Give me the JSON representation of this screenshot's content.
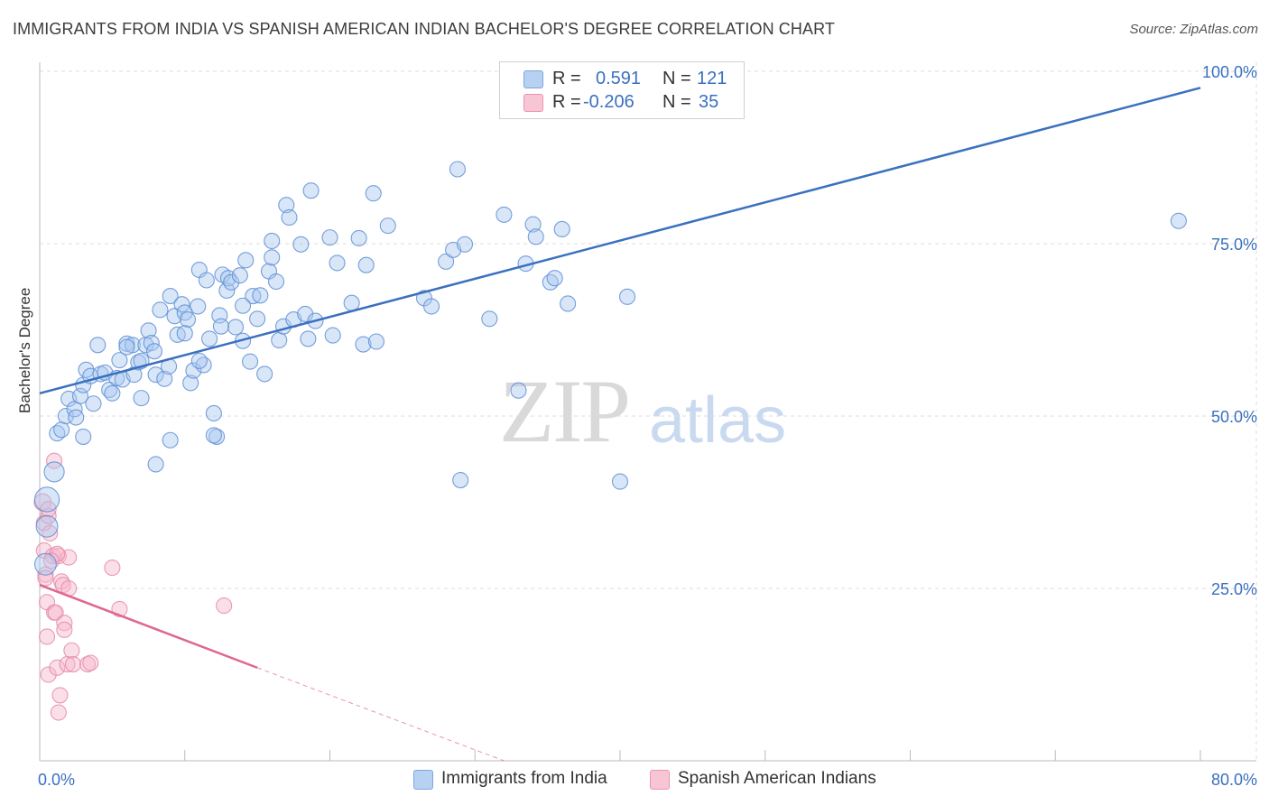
{
  "title": "IMMIGRANTS FROM INDIA VS SPANISH AMERICAN INDIAN BACHELOR'S DEGREE CORRELATION CHART",
  "source": "Source: ZipAtlas.com",
  "watermark": {
    "zip": "ZIP",
    "atlas": "atlas"
  },
  "legend": {
    "rows": [
      {
        "r_label": "R =",
        "r_value": "0.591",
        "n_label": "N =",
        "n_value": "121",
        "color": "#a9c8ef"
      },
      {
        "r_label": "R =",
        "r_value": "-0.206",
        "n_label": "N =",
        "n_value": "35",
        "color": "#f6b8cc"
      }
    ]
  },
  "bottom_legend": {
    "series1": "Immigrants from India",
    "series2": "Spanish American Indians"
  },
  "colors": {
    "blue": "#3a70c0",
    "blue_fill": "#a9c8ef",
    "pink": "#e06692",
    "pink_fill": "#f6b8cc",
    "grid": "#dddddd"
  },
  "chart_data": {
    "type": "scatter",
    "title": "IMMIGRANTS FROM INDIA VS SPANISH AMERICAN INDIAN BACHELOR'S DEGREE CORRELATION CHART",
    "xlabel": "",
    "ylabel": "Bachelor's Degree",
    "xlim": [
      0,
      80
    ],
    "ylim": [
      0,
      100
    ],
    "x_tick_labels": [
      "0.0%",
      "80.0%"
    ],
    "y_tick_labels": [
      "25.0%",
      "50.0%",
      "75.0%",
      "100.0%"
    ],
    "y_ticks": [
      25,
      50,
      75,
      100
    ],
    "series": [
      {
        "name": "Immigrants from India",
        "R": 0.591,
        "N": 121,
        "trend": {
          "x": [
            0,
            80
          ],
          "y": [
            53.3,
            97.6
          ],
          "dashed_from": null
        },
        "points": [
          [
            0.5,
            37.9,
            1.6
          ],
          [
            0.5,
            34.0,
            1.4
          ],
          [
            0.4,
            28.5,
            1.4
          ],
          [
            1.0,
            41.9,
            1.3
          ],
          [
            1.2,
            47.5,
            1.0
          ],
          [
            1.5,
            48.0,
            1.0
          ],
          [
            1.8,
            50.0,
            1.0
          ],
          [
            2.0,
            52.5,
            1.0
          ],
          [
            2.4,
            51.0,
            1.0
          ],
          [
            2.5,
            49.8,
            1.0
          ],
          [
            2.8,
            52.9,
            1.0
          ],
          [
            3.0,
            54.5,
            1.0
          ],
          [
            3.2,
            56.7,
            1.0
          ],
          [
            3.5,
            55.8,
            1.0
          ],
          [
            3.7,
            51.8,
            1.0
          ],
          [
            4.0,
            60.3,
            1.0
          ],
          [
            4.2,
            56.1,
            1.0
          ],
          [
            4.5,
            56.3,
            1.0
          ],
          [
            4.8,
            53.8,
            1.0
          ],
          [
            5.0,
            53.3,
            1.0
          ],
          [
            5.3,
            55.5,
            1.0
          ],
          [
            5.5,
            58.1,
            1.0
          ],
          [
            5.7,
            55.3,
            1.0
          ],
          [
            6.0,
            60.5,
            1.0
          ],
          [
            6.4,
            60.3,
            1.0
          ],
          [
            6.5,
            56.0,
            1.0
          ],
          [
            6.8,
            57.8,
            1.0
          ],
          [
            7.0,
            52.6,
            1.0
          ],
          [
            7.3,
            60.3,
            1.0
          ],
          [
            7.5,
            62.4,
            1.0
          ],
          [
            7.7,
            60.6,
            1.0
          ],
          [
            7.9,
            59.4,
            1.0
          ],
          [
            8.0,
            56.0,
            1.0
          ],
          [
            8.3,
            65.4,
            1.0
          ],
          [
            8.6,
            55.4,
            1.0
          ],
          [
            8.9,
            57.2,
            1.0
          ],
          [
            9.0,
            67.4,
            1.0
          ],
          [
            9.3,
            64.5,
            1.0
          ],
          [
            9.5,
            61.8,
            1.0
          ],
          [
            9.8,
            66.2,
            1.0
          ],
          [
            10.0,
            65.0,
            1.0
          ],
          [
            10.2,
            64.0,
            1.0
          ],
          [
            10.4,
            54.8,
            1.0
          ],
          [
            10.6,
            56.6,
            1.0
          ],
          [
            10.9,
            65.9,
            1.0
          ],
          [
            11.0,
            71.2,
            1.0
          ],
          [
            11.3,
            57.4,
            1.0
          ],
          [
            11.5,
            69.7,
            1.0
          ],
          [
            11.7,
            61.2,
            1.0
          ],
          [
            12.0,
            50.4,
            1.0
          ],
          [
            12.2,
            47.0,
            1.0
          ],
          [
            12.4,
            64.6,
            1.0
          ],
          [
            12.6,
            70.5,
            1.0
          ],
          [
            12.9,
            68.2,
            1.0
          ],
          [
            13.0,
            70.0,
            1.0
          ],
          [
            13.2,
            69.4,
            1.0
          ],
          [
            13.5,
            62.9,
            1.0
          ],
          [
            13.8,
            70.4,
            1.0
          ],
          [
            14.0,
            60.9,
            1.0
          ],
          [
            14.2,
            72.6,
            1.0
          ],
          [
            14.5,
            57.9,
            1.0
          ],
          [
            14.7,
            67.4,
            1.0
          ],
          [
            15.0,
            64.1,
            1.0
          ],
          [
            15.2,
            67.5,
            1.0
          ],
          [
            15.5,
            56.1,
            1.0
          ],
          [
            15.8,
            71.0,
            1.0
          ],
          [
            16.3,
            69.5,
            1.0
          ],
          [
            16.0,
            75.4,
            1.0
          ],
          [
            16.5,
            61.0,
            1.0
          ],
          [
            16.8,
            63.0,
            1.0
          ],
          [
            17.0,
            80.6,
            1.0
          ],
          [
            17.2,
            78.8,
            1.0
          ],
          [
            17.5,
            64.0,
            1.0
          ],
          [
            18.0,
            74.9,
            1.0
          ],
          [
            18.3,
            64.8,
            1.0
          ],
          [
            18.5,
            61.2,
            1.0
          ],
          [
            18.7,
            82.7,
            1.0
          ],
          [
            19.0,
            63.8,
            1.0
          ],
          [
            20.0,
            75.9,
            1.0
          ],
          [
            20.2,
            61.7,
            1.0
          ],
          [
            20.5,
            72.2,
            1.0
          ],
          [
            21.5,
            66.4,
            1.0
          ],
          [
            22.0,
            75.8,
            1.0
          ],
          [
            22.3,
            60.4,
            1.0
          ],
          [
            22.5,
            71.9,
            1.0
          ],
          [
            23.0,
            82.3,
            1.0
          ],
          [
            23.2,
            60.8,
            1.0
          ],
          [
            24.0,
            77.6,
            1.0
          ],
          [
            26.5,
            67.1,
            1.0
          ],
          [
            27.0,
            65.9,
            1.0
          ],
          [
            28.0,
            72.4,
            1.0
          ],
          [
            28.5,
            74.1,
            1.0
          ],
          [
            28.8,
            85.8,
            1.0
          ],
          [
            29.3,
            74.9,
            1.0
          ],
          [
            29.0,
            40.7,
            1.0
          ],
          [
            31.0,
            64.1,
            1.0
          ],
          [
            32.0,
            79.2,
            1.0
          ],
          [
            33.0,
            53.7,
            1.0
          ],
          [
            33.5,
            72.1,
            1.0
          ],
          [
            34.0,
            77.8,
            1.0
          ],
          [
            34.2,
            76.0,
            1.0
          ],
          [
            35.2,
            69.4,
            1.0
          ],
          [
            35.5,
            70.0,
            1.0
          ],
          [
            36.0,
            77.1,
            1.0
          ],
          [
            36.4,
            66.3,
            1.0
          ],
          [
            40.0,
            40.5,
            1.0
          ],
          [
            40.5,
            67.3,
            1.0
          ],
          [
            78.5,
            78.3,
            1.0
          ],
          [
            3.0,
            47.0,
            1.0
          ],
          [
            9.0,
            46.5,
            1.0
          ],
          [
            8.0,
            43.0,
            1.0
          ],
          [
            12.0,
            47.2,
            1.0
          ],
          [
            6.0,
            60.0,
            1.0
          ],
          [
            10.0,
            62.0,
            1.0
          ],
          [
            7.0,
            58.0,
            1.0
          ],
          [
            11.0,
            58.0,
            1.0
          ],
          [
            12.5,
            63.0,
            1.0
          ],
          [
            14.0,
            66.0,
            1.0
          ],
          [
            16.0,
            73.0,
            1.0
          ]
        ]
      },
      {
        "name": "Spanish American Indians",
        "R": -0.206,
        "N": 35,
        "trend": {
          "x": [
            0,
            15
          ],
          "y": [
            25.5,
            13.5
          ],
          "dashed_to": [
            32,
            0
          ]
        },
        "points": [
          [
            0.2,
            37.5,
            1.1
          ],
          [
            0.3,
            34.5,
            1.0
          ],
          [
            0.3,
            30.5,
            1.0
          ],
          [
            0.4,
            27.0,
            1.0
          ],
          [
            0.5,
            23.0,
            1.0
          ],
          [
            0.5,
            18.0,
            1.0
          ],
          [
            0.6,
            12.5,
            1.0
          ],
          [
            0.6,
            35.5,
            1.0
          ],
          [
            0.7,
            33.0,
            1.0
          ],
          [
            0.9,
            29.7,
            1.0
          ],
          [
            1.0,
            21.5,
            1.0
          ],
          [
            1.0,
            43.5,
            1.0
          ],
          [
            1.1,
            21.5,
            1.0
          ],
          [
            1.2,
            13.5,
            1.0
          ],
          [
            1.3,
            29.7,
            1.0
          ],
          [
            1.3,
            7.0,
            1.0
          ],
          [
            1.4,
            9.5,
            1.0
          ],
          [
            1.5,
            26.0,
            1.0
          ],
          [
            1.6,
            25.5,
            1.0
          ],
          [
            1.7,
            20.0,
            1.0
          ],
          [
            1.7,
            19.0,
            1.0
          ],
          [
            1.9,
            14.0,
            1.0
          ],
          [
            2.0,
            29.5,
            1.0
          ],
          [
            2.0,
            25.0,
            1.0
          ],
          [
            2.2,
            16.0,
            1.0
          ],
          [
            2.3,
            14.0,
            1.0
          ],
          [
            3.3,
            14.0,
            1.0
          ],
          [
            3.5,
            14.2,
            1.0
          ],
          [
            5.5,
            22.0,
            1.0
          ],
          [
            5.0,
            28.0,
            1.0
          ],
          [
            1.2,
            30.0,
            1.0
          ],
          [
            0.8,
            29.0,
            1.0
          ],
          [
            0.4,
            26.5,
            1.0
          ],
          [
            12.7,
            22.5,
            1.0
          ],
          [
            0.6,
            36.5,
            1.0
          ]
        ]
      }
    ]
  }
}
